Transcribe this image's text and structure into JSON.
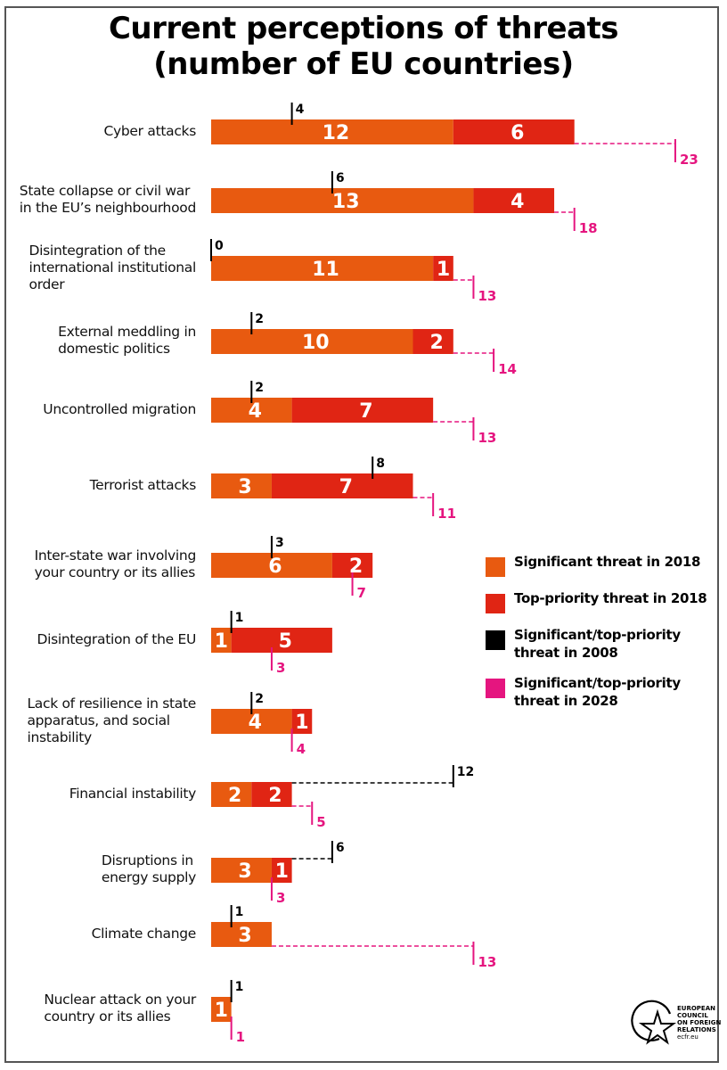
{
  "title_line1": "Current perceptions of threats",
  "title_line2": "(number of EU countries)",
  "colors": {
    "significant_2018": "#E85A10",
    "top_priority_2018": "#E02514",
    "marker_2008": "#000000",
    "marker_2028": "#E5157F",
    "bar_text": "#ffffff"
  },
  "legend": [
    {
      "label": "Significant threat in 2018",
      "color": "#E85A10"
    },
    {
      "label": "Top-priority threat in 2018",
      "color": "#E02514"
    },
    {
      "label": "Significant/top-priority threat in 2008",
      "color": "#000000"
    },
    {
      "label": "Significant/top-priority threat in 2028",
      "color": "#E5157F"
    }
  ],
  "logo": {
    "lines": [
      "EUROPEAN",
      "COUNCIL",
      "ON FOREIGN",
      "RELATIONS"
    ],
    "url": "ecfr.eu"
  },
  "chart_data": {
    "type": "bar",
    "orientation": "horizontal",
    "stacked": true,
    "title": "Current perceptions of threats (number of EU countries)",
    "xlabel": "",
    "ylabel": "",
    "grid": false,
    "legend_position": "right",
    "categories": [
      [
        "Cyber attacks"
      ],
      [
        "State collapse or civil war",
        "in the EU’s neighbourhood"
      ],
      [
        "Disintegration of the",
        "international institutional",
        "order"
      ],
      [
        "External meddling in",
        "domestic politics"
      ],
      [
        "Uncontrolled migration"
      ],
      [
        "Terrorist attacks"
      ],
      [
        "Inter-state war involving",
        "your country or its allies"
      ],
      [
        "Disintegration of the EU"
      ],
      [
        "Lack of resilience in state",
        "apparatus, and social",
        "instability"
      ],
      [
        "Financial instability"
      ],
      [
        "Disruptions in",
        "energy supply"
      ],
      [
        "Climate change"
      ],
      [
        "Nuclear attack on your",
        "country or its allies"
      ]
    ],
    "series": [
      {
        "name": "Significant threat in 2018",
        "values": [
          12,
          13,
          11,
          10,
          4,
          3,
          6,
          1,
          4,
          2,
          3,
          3,
          1
        ]
      },
      {
        "name": "Top-priority threat in 2018",
        "values": [
          6,
          4,
          1,
          2,
          7,
          7,
          2,
          5,
          1,
          2,
          1,
          0,
          0
        ]
      },
      {
        "name": "Significant/top-priority threat in 2008",
        "values": [
          4,
          6,
          0,
          2,
          2,
          8,
          3,
          1,
          2,
          12,
          6,
          1,
          1
        ]
      },
      {
        "name": "Significant/top-priority threat in 2028",
        "values": [
          23,
          18,
          13,
          14,
          13,
          11,
          7,
          3,
          4,
          5,
          3,
          13,
          1
        ]
      }
    ]
  }
}
